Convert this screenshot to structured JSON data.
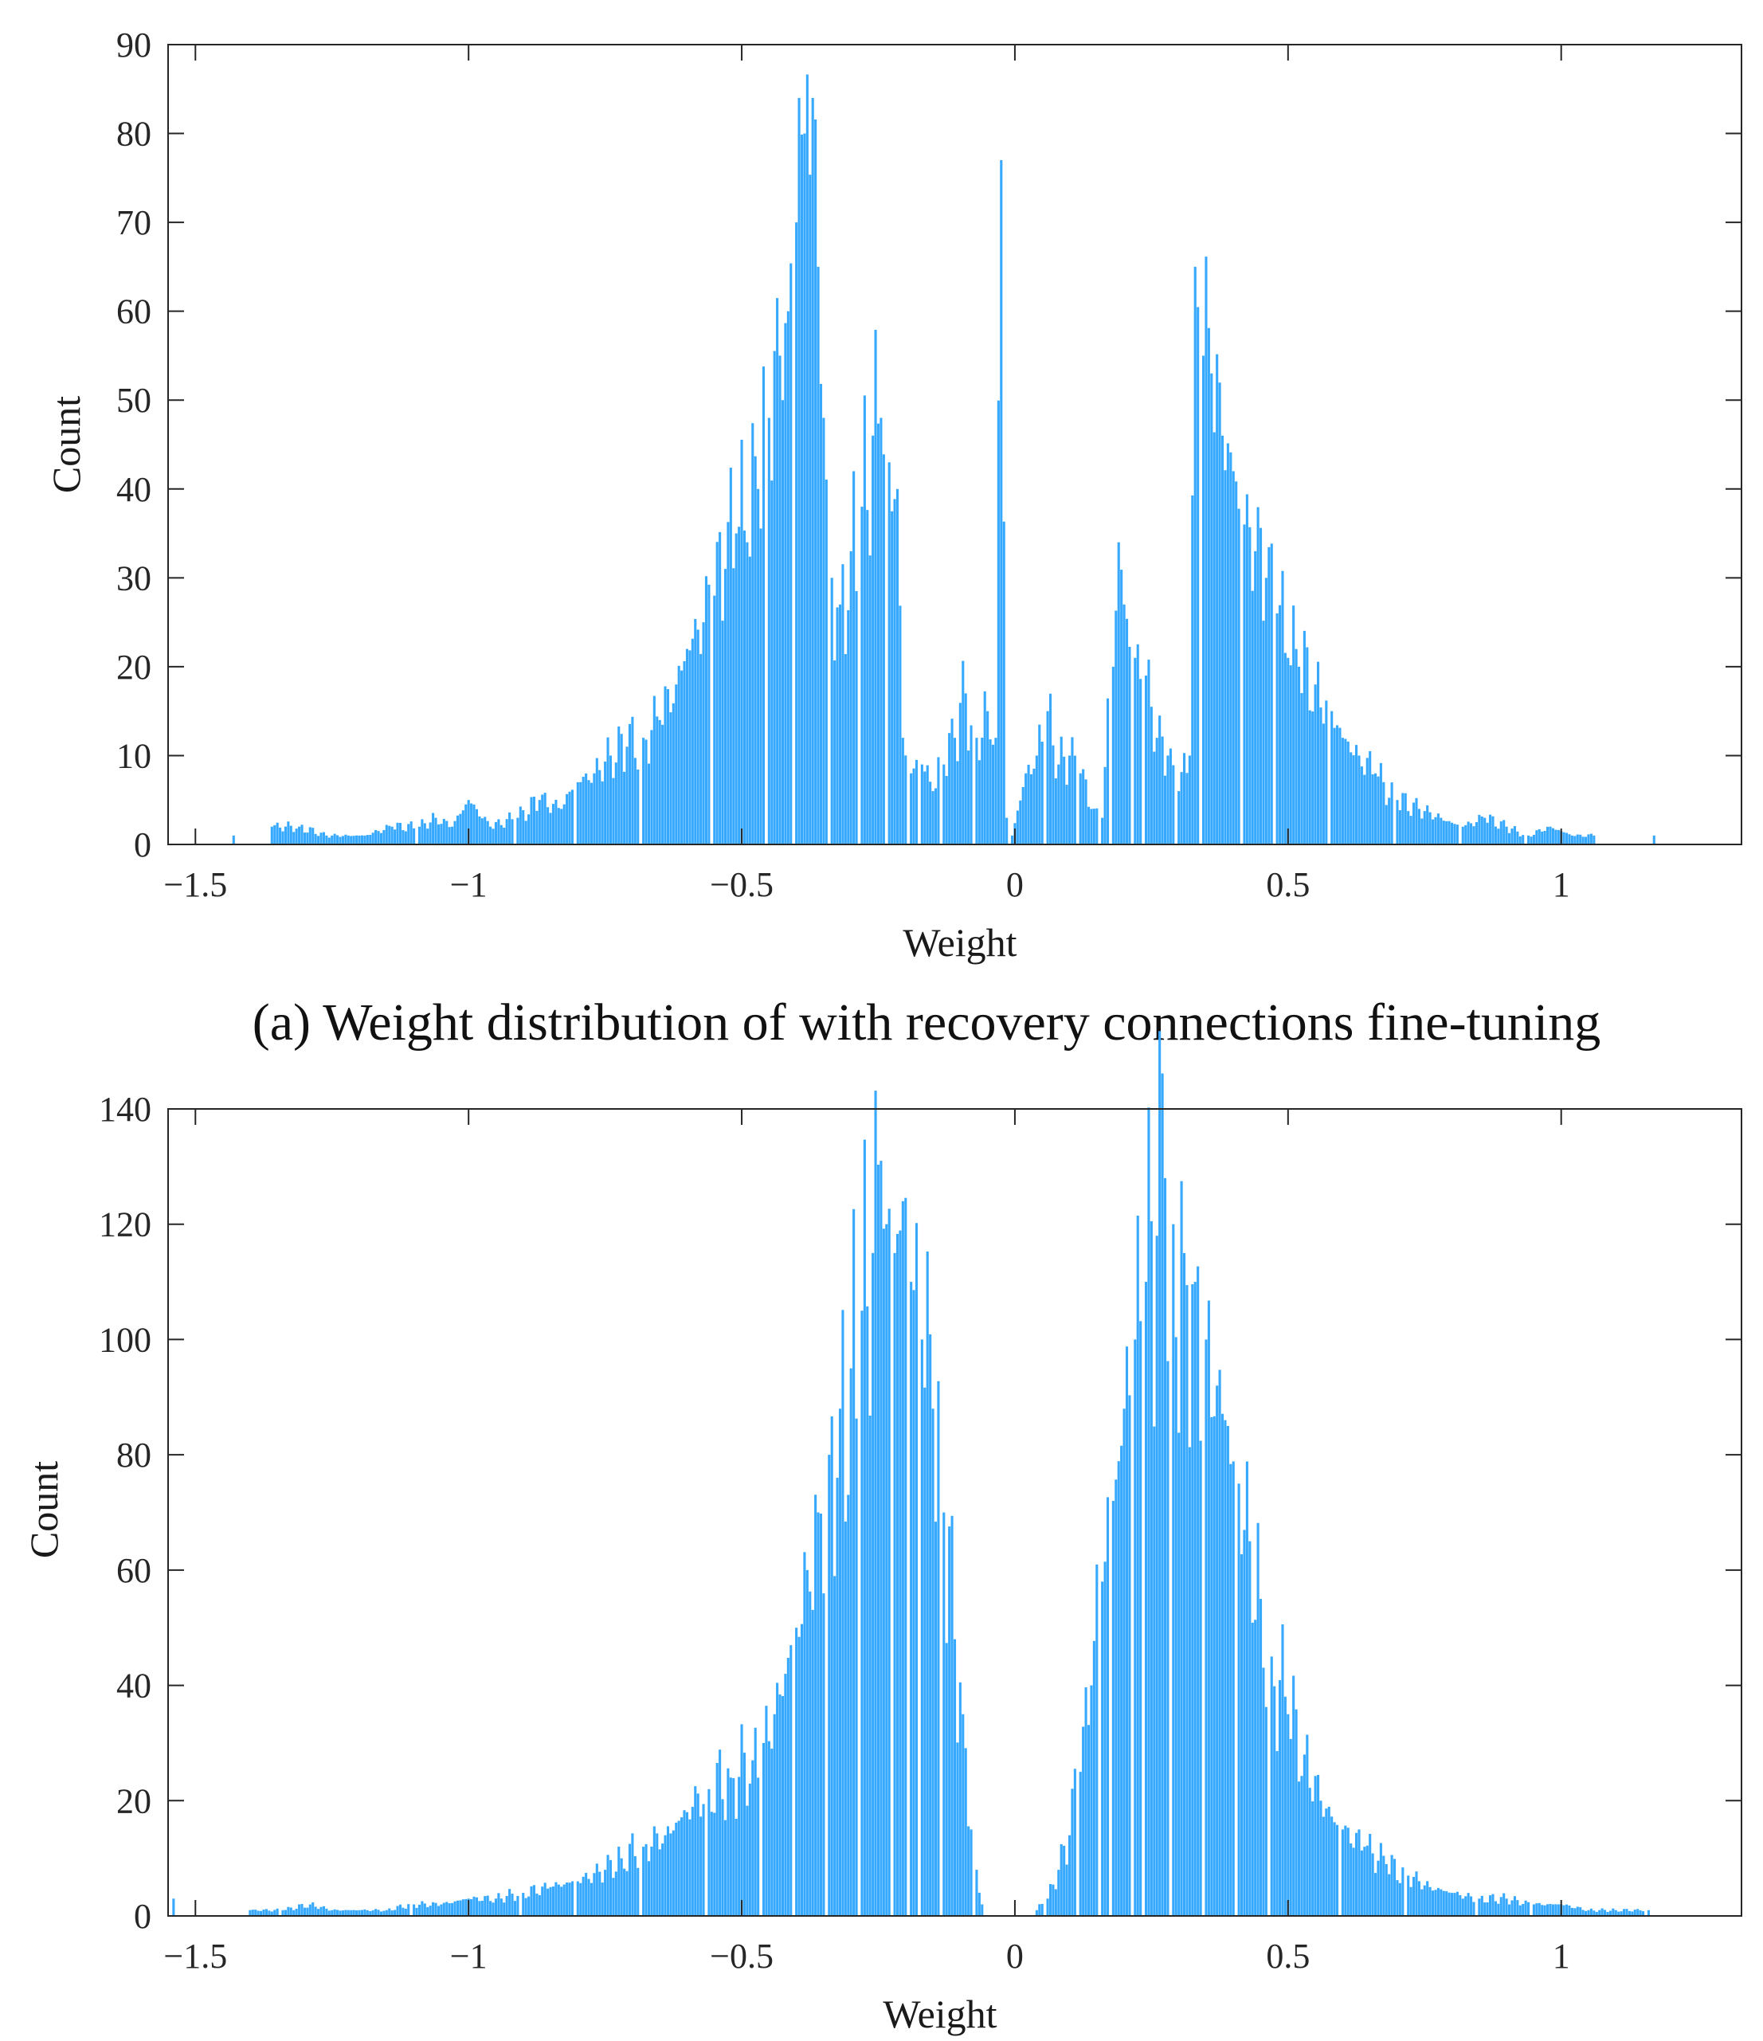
{
  "bar_color": "#36a9ff",
  "bar_edge_color": "#2a95e6",
  "axis_color": "#262626",
  "chart_data": [
    {
      "type": "bar",
      "title": "",
      "caption": "(a) Weight distribution of with recovery connections fine-tuning",
      "xlabel": "Weight",
      "ylabel": "Count",
      "xlim": [
        -1.55,
        1.33
      ],
      "ylim": [
        0,
        90
      ],
      "xticks": [
        -1.5,
        -1,
        -0.5,
        0,
        0.5,
        1
      ],
      "xtick_labels": [
        "−1.5",
        "−1",
        "−0.5",
        "0",
        "0.5",
        "1"
      ],
      "yticks": [
        0,
        10,
        20,
        30,
        40,
        50,
        60,
        70,
        80,
        90
      ],
      "ytick_labels": [
        "0",
        "10",
        "20",
        "30",
        "40",
        "50",
        "60",
        "70",
        "80",
        "90"
      ],
      "bin_width": 0.005,
      "grid": false,
      "series": [
        {
          "name": "weights",
          "color": "#36a9ff",
          "values": [
            [
              -1.43,
              1
            ],
            [
              -1.36,
              2
            ],
            [
              -1.31,
              2
            ],
            [
              -1.26,
              1
            ],
            [
              -1.22,
              1
            ],
            [
              -1.19,
              1
            ],
            [
              -1.14,
              2
            ],
            [
              -1.09,
              2
            ],
            [
              -1.06,
              3
            ],
            [
              -1.03,
              2
            ],
            [
              -1.0,
              5
            ],
            [
              -0.96,
              2
            ],
            [
              -0.91,
              3
            ],
            [
              -0.87,
              5
            ],
            [
              -0.83,
              4
            ],
            [
              -0.8,
              7
            ],
            [
              -0.77,
              8
            ],
            [
              -0.74,
              10
            ],
            [
              -0.71,
              11
            ],
            [
              -0.68,
              12
            ],
            [
              -0.65,
              14
            ],
            [
              -0.62,
              18
            ],
            [
              -0.6,
              22
            ],
            [
              -0.57,
              25
            ],
            [
              -0.55,
              28
            ],
            [
              -0.53,
              31
            ],
            [
              -0.51,
              35
            ],
            [
              -0.49,
              34
            ],
            [
              -0.47,
              40
            ],
            [
              -0.45,
              48
            ],
            [
              -0.43,
              55
            ],
            [
              -0.415,
              60
            ],
            [
              -0.4,
              70
            ],
            [
              -0.395,
              84
            ],
            [
              -0.385,
              80
            ],
            [
              -0.37,
              84
            ],
            [
              -0.36,
              65
            ],
            [
              -0.35,
              48
            ],
            [
              -0.335,
              30
            ],
            [
              -0.32,
              27
            ],
            [
              -0.3,
              33
            ],
            [
              -0.28,
              38
            ],
            [
              -0.26,
              46
            ],
            [
              -0.245,
              48
            ],
            [
              -0.23,
              43
            ],
            [
              -0.215,
              40
            ],
            [
              -0.205,
              12
            ],
            [
              -0.19,
              8
            ],
            [
              -0.17,
              9
            ],
            [
              -0.15,
              6
            ],
            [
              -0.13,
              9
            ],
            [
              -0.11,
              12
            ],
            [
              -0.09,
              17
            ],
            [
              -0.07,
              12
            ],
            [
              -0.05,
              15
            ],
            [
              -0.035,
              12
            ],
            [
              -0.025,
              77
            ],
            [
              -0.015,
              3
            ],
            [
              -0.005,
              1
            ],
            [
              0.02,
              8
            ],
            [
              0.04,
              10
            ],
            [
              0.06,
              15
            ],
            [
              0.08,
              9
            ],
            [
              0.1,
              10
            ],
            [
              0.12,
              8
            ],
            [
              0.14,
              4
            ],
            [
              0.16,
              3
            ],
            [
              0.18,
              20
            ],
            [
              0.19,
              34
            ],
            [
              0.2,
              27
            ],
            [
              0.22,
              21
            ],
            [
              0.24,
              19
            ],
            [
              0.26,
              12
            ],
            [
              0.28,
              10
            ],
            [
              0.3,
              6
            ],
            [
              0.32,
              10
            ],
            [
              0.33,
              65
            ],
            [
              0.345,
              55
            ],
            [
              0.36,
              53
            ],
            [
              0.38,
              46
            ],
            [
              0.4,
              42
            ],
            [
              0.42,
              36
            ],
            [
              0.44,
              33
            ],
            [
              0.46,
              30
            ],
            [
              0.48,
              26
            ],
            [
              0.5,
              21
            ],
            [
              0.52,
              20
            ],
            [
              0.55,
              18
            ],
            [
              0.58,
              15
            ],
            [
              0.6,
              12
            ],
            [
              0.63,
              10
            ],
            [
              0.66,
              8
            ],
            [
              0.7,
              5
            ],
            [
              0.74,
              4
            ],
            [
              0.78,
              3
            ],
            [
              0.82,
              2
            ],
            [
              0.86,
              3
            ],
            [
              0.9,
              2
            ],
            [
              0.94,
              1
            ],
            [
              0.98,
              2
            ],
            [
              1.02,
              1
            ],
            [
              1.06,
              1
            ],
            [
              1.17,
              1
            ]
          ]
        }
      ]
    },
    {
      "type": "bar",
      "title": "",
      "caption": "",
      "xlabel": "Weight",
      "ylabel": "Count",
      "xlim": [
        -1.55,
        1.33
      ],
      "ylim": [
        0,
        140
      ],
      "xticks": [
        -1.5,
        -1,
        -0.5,
        0,
        0.5,
        1
      ],
      "xtick_labels": [
        "−1.5",
        "−1",
        "−0.5",
        "0",
        "0.5",
        "1"
      ],
      "yticks": [
        0,
        20,
        40,
        60,
        80,
        100,
        120,
        140
      ],
      "ytick_labels": [
        "0",
        "20",
        "40",
        "60",
        "80",
        "100",
        "120",
        "140"
      ],
      "bin_width": 0.005,
      "grid": false,
      "series": [
        {
          "name": "weights",
          "color": "#36a9ff",
          "values": [
            [
              -1.54,
              3
            ],
            [
              -1.4,
              1
            ],
            [
              -1.34,
              1
            ],
            [
              -1.29,
              2
            ],
            [
              -1.25,
              1
            ],
            [
              -1.2,
              1
            ],
            [
              -1.15,
              1
            ],
            [
              -1.1,
              2
            ],
            [
              -1.05,
              2
            ],
            [
              -1.0,
              3
            ],
            [
              -0.95,
              3
            ],
            [
              -0.9,
              4
            ],
            [
              -0.85,
              5
            ],
            [
              -0.8,
              6
            ],
            [
              -0.75,
              8
            ],
            [
              -0.72,
              10
            ],
            [
              -0.68,
              12
            ],
            [
              -0.64,
              14
            ],
            [
              -0.6,
              18
            ],
            [
              -0.56,
              22
            ],
            [
              -0.52,
              24
            ],
            [
              -0.48,
              27
            ],
            [
              -0.46,
              30
            ],
            [
              -0.44,
              35
            ],
            [
              -0.42,
              42
            ],
            [
              -0.4,
              50
            ],
            [
              -0.38,
              60
            ],
            [
              -0.36,
              70
            ],
            [
              -0.34,
              80
            ],
            [
              -0.32,
              88
            ],
            [
              -0.3,
              95
            ],
            [
              -0.28,
              105
            ],
            [
              -0.26,
              115
            ],
            [
              -0.245,
              131
            ],
            [
              -0.235,
              120
            ],
            [
              -0.22,
              115
            ],
            [
              -0.205,
              124
            ],
            [
              -0.19,
              110
            ],
            [
              -0.17,
              100
            ],
            [
              -0.15,
              88
            ],
            [
              -0.13,
              70
            ],
            [
              -0.11,
              48
            ],
            [
              -0.095,
              35
            ],
            [
              -0.08,
              15
            ],
            [
              -0.07,
              8
            ],
            [
              -0.06,
              2
            ],
            [
              0.04,
              1
            ],
            [
              0.06,
              3
            ],
            [
              0.08,
              8
            ],
            [
              0.1,
              14
            ],
            [
              0.12,
              25
            ],
            [
              0.14,
              40
            ],
            [
              0.16,
              58
            ],
            [
              0.18,
              72
            ],
            [
              0.2,
              88
            ],
            [
              0.22,
              100
            ],
            [
              0.24,
              110
            ],
            [
              0.26,
              118
            ],
            [
              0.275,
              128
            ],
            [
              0.29,
              120
            ],
            [
              0.31,
              115
            ],
            [
              0.33,
              110
            ],
            [
              0.35,
              100
            ],
            [
              0.37,
              92
            ],
            [
              0.39,
              85
            ],
            [
              0.41,
              75
            ],
            [
              0.43,
              65
            ],
            [
              0.45,
              55
            ],
            [
              0.47,
              45
            ],
            [
              0.5,
              35
            ],
            [
              0.53,
              28
            ],
            [
              0.56,
              20
            ],
            [
              0.6,
              15
            ],
            [
              0.64,
              12
            ],
            [
              0.68,
              9
            ],
            [
              0.72,
              7
            ],
            [
              0.76,
              5
            ],
            [
              0.8,
              4
            ],
            [
              0.85,
              3
            ],
            [
              0.9,
              3
            ],
            [
              0.95,
              2
            ],
            [
              1.0,
              2
            ],
            [
              1.05,
              1
            ],
            [
              1.1,
              1
            ],
            [
              1.16,
              1
            ]
          ]
        }
      ]
    }
  ]
}
